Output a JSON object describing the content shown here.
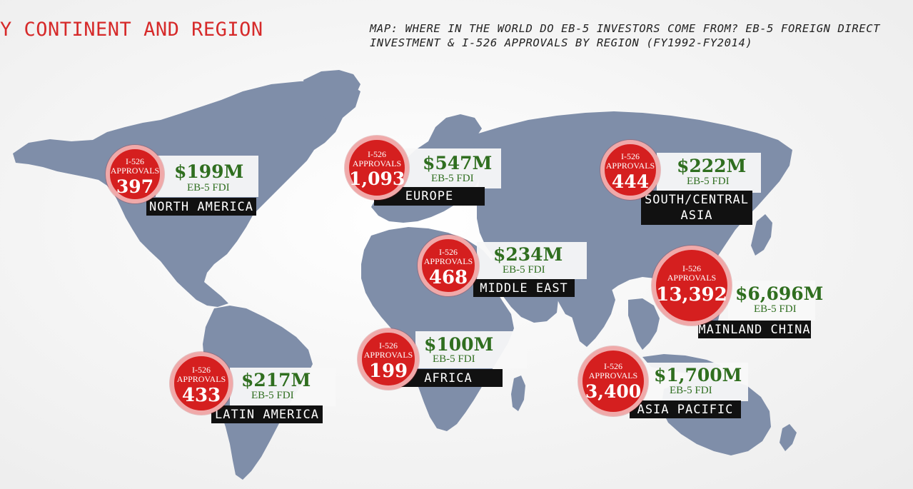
{
  "page_title": "Y CONTINENT AND REGION",
  "map_caption": {
    "line1": "MAP: WHERE IN THE WORLD DO EB-5 INVESTORS COME FROM? EB-5 FOREIGN DIRECT",
    "line2": "INVESTMENT & I-526 APPROVALS BY REGION (FY1992-FY2014)"
  },
  "colors": {
    "accent_red": "#d62a2a",
    "land": "#7f8ea9",
    "fdi_green": "#2f6e1f",
    "label_bar": "#111111"
  },
  "approval_label_line1": "I-526",
  "approval_label_line2": "APPROVALS",
  "fdi_sublabel": "EB-5 FDI",
  "regions": [
    {
      "id": "north-america",
      "name": "NORTH AMERICA",
      "approvals": "397",
      "fdi": "$199M"
    },
    {
      "id": "europe",
      "name": "EUROPE",
      "approvals": "1,093",
      "fdi": "$547M"
    },
    {
      "id": "south-central-asia",
      "name_line1": "SOUTH/CENTRAL",
      "name_line2": "ASIA",
      "approvals": "444",
      "fdi": "$222M"
    },
    {
      "id": "middle-east",
      "name": "MIDDLE EAST",
      "approvals": "468",
      "fdi": "$234M"
    },
    {
      "id": "mainland-china",
      "name": "MAINLAND CHINA",
      "approvals": "13,392",
      "fdi": "$6,696M"
    },
    {
      "id": "africa",
      "name": "AFRICA",
      "approvals": "199",
      "fdi": "$100M"
    },
    {
      "id": "latin-america",
      "name": "LATIN AMERICA",
      "approvals": "433",
      "fdi": "$217M"
    },
    {
      "id": "asia-pacific",
      "name": "ASIA PACIFIC",
      "approvals": "3,400",
      "fdi": "$1,700M"
    }
  ]
}
